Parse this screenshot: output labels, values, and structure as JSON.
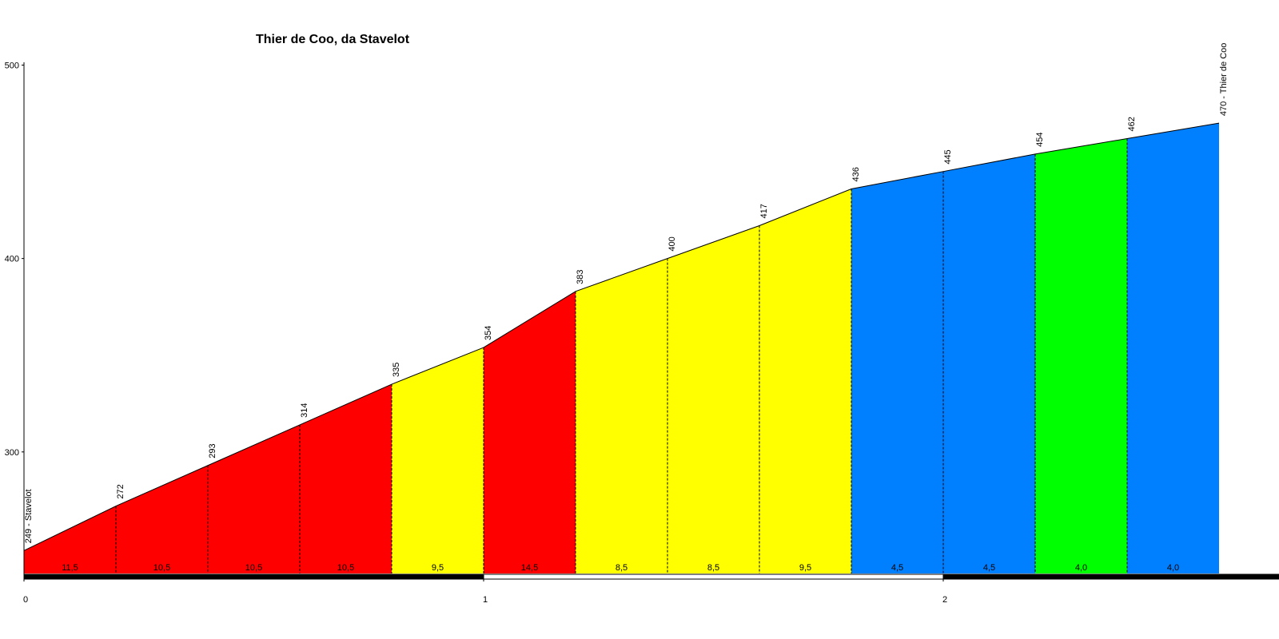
{
  "chart_data": {
    "type": "area",
    "title": "Thier de Coo, da Stavelot",
    "x_unit": "km",
    "y_unit": "m",
    "xlim": [
      0,
      2.75
    ],
    "ylim": [
      236,
      500
    ],
    "y_ticks": [
      "300",
      "400",
      "500"
    ],
    "x_ticks": [
      "0",
      "1",
      "2"
    ],
    "points": [
      {
        "x": 0.0,
        "y": 249,
        "label": "249 - Stavelot"
      },
      {
        "x": 0.2,
        "y": 272,
        "label": "272"
      },
      {
        "x": 0.4,
        "y": 293,
        "label": "293"
      },
      {
        "x": 0.6,
        "y": 314,
        "label": "314"
      },
      {
        "x": 0.8,
        "y": 335,
        "label": "335"
      },
      {
        "x": 1.0,
        "y": 354,
        "label": "354"
      },
      {
        "x": 1.2,
        "y": 383,
        "label": "383"
      },
      {
        "x": 1.4,
        "y": 400,
        "label": "400"
      },
      {
        "x": 1.6,
        "y": 417,
        "label": "417"
      },
      {
        "x": 1.8,
        "y": 436,
        "label": "436"
      },
      {
        "x": 2.0,
        "y": 445,
        "label": "445"
      },
      {
        "x": 2.2,
        "y": 454,
        "label": "454"
      },
      {
        "x": 2.4,
        "y": 462,
        "label": "462"
      },
      {
        "x": 2.6,
        "y": 470,
        "label": "470 - Thier de Coo"
      }
    ],
    "segments": [
      {
        "gradient": "11,5",
        "color": "#ff0000"
      },
      {
        "gradient": "10,5",
        "color": "#ff0000"
      },
      {
        "gradient": "10,5",
        "color": "#ff0000"
      },
      {
        "gradient": "10,5",
        "color": "#ff0000"
      },
      {
        "gradient": "9,5",
        "color": "#ffff00"
      },
      {
        "gradient": "14,5",
        "color": "#ff0000"
      },
      {
        "gradient": "8,5",
        "color": "#ffff00"
      },
      {
        "gradient": "8,5",
        "color": "#ffff00"
      },
      {
        "gradient": "9,5",
        "color": "#ffff00"
      },
      {
        "gradient": "4,5",
        "color": "#0080ff"
      },
      {
        "gradient": "4,5",
        "color": "#0080ff"
      },
      {
        "gradient": "4,0",
        "color": "#00ff00"
      },
      {
        "gradient": "4,0",
        "color": "#0080ff"
      }
    ],
    "km_bar_colors": [
      "#000000",
      "#ffffff"
    ],
    "grid": false
  }
}
